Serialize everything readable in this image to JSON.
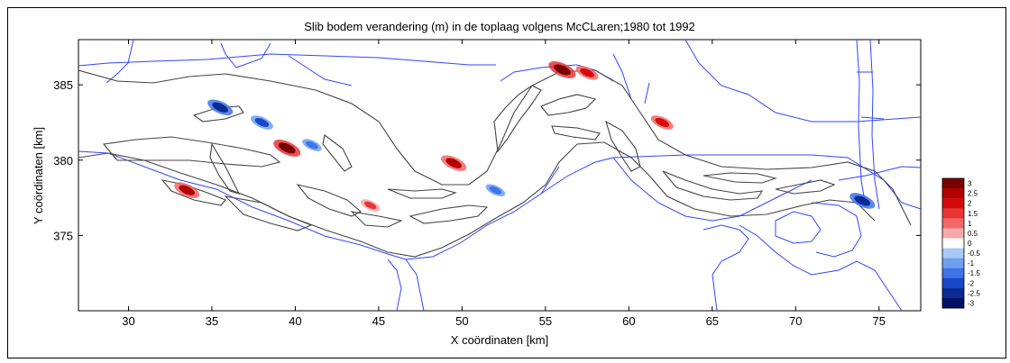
{
  "chart_data": {
    "type": "heatmap",
    "title": "Slib bodem verandering (m) in de toplaag volgens McCLaren;1980 tot 1992",
    "xlabel": "X coördinaten [km]",
    "ylabel": "Y coördinaten [km]",
    "xlim": [
      27,
      77.5
    ],
    "ylim": [
      370,
      388
    ],
    "x_ticks": [
      "30",
      "35",
      "40",
      "45",
      "50",
      "55",
      "60",
      "65",
      "70",
      "75"
    ],
    "y_ticks": [
      "385",
      "380",
      "375"
    ],
    "colorbar": {
      "ticks": [
        "3",
        "2.5",
        "2",
        "1.5",
        "1",
        "0.5",
        "0",
        "-0.5",
        "-1",
        "-1.5",
        "-2",
        "-2.5",
        "-3"
      ],
      "colors": [
        "#7a0000",
        "#b20000",
        "#d40a0a",
        "#e83535",
        "#f26767",
        "#f7a8a8",
        "#ffffff",
        "#a8c8f5",
        "#6fa0ee",
        "#3d74e6",
        "#1846c8",
        "#0a2a96",
        "#001060"
      ]
    },
    "highlights": [
      {
        "x": 39.5,
        "y": 380.8,
        "v": 2.8
      },
      {
        "x": 38.0,
        "y": 382.5,
        "v": -2.0
      },
      {
        "x": 35.5,
        "y": 383.5,
        "v": -2.5
      },
      {
        "x": 33.5,
        "y": 378.0,
        "v": 2.5
      },
      {
        "x": 49.5,
        "y": 379.8,
        "v": 2.5
      },
      {
        "x": 56.0,
        "y": 386.0,
        "v": 2.8
      },
      {
        "x": 57.5,
        "y": 385.8,
        "v": 2.0
      },
      {
        "x": 62.0,
        "y": 382.5,
        "v": 2.0
      },
      {
        "x": 74.0,
        "y": 377.3,
        "v": -2.5
      },
      {
        "x": 41.0,
        "y": 381.0,
        "v": -1.5
      },
      {
        "x": 44.5,
        "y": 377.0,
        "v": 1.5
      },
      {
        "x": 52.0,
        "y": 378.0,
        "v": -1.5
      }
    ]
  }
}
